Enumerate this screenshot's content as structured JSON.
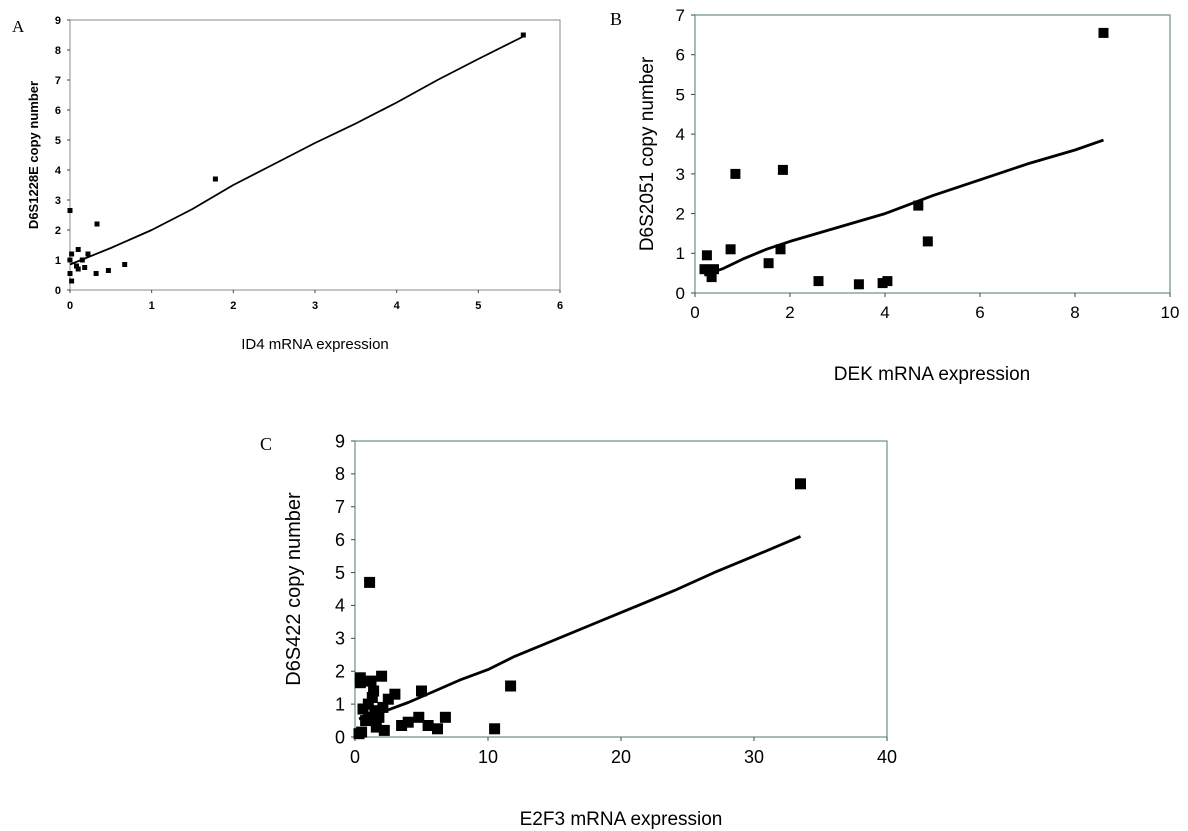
{
  "chart_data": [
    {
      "type": "scatter",
      "panel_letter": "A",
      "title": "",
      "xlabel": "ID4 mRNA expression",
      "ylabel": "D6S1228E copy number",
      "xlim": [
        0,
        6
      ],
      "ylim": [
        0,
        9
      ],
      "xticks": [
        0,
        1,
        2,
        3,
        4,
        5,
        6
      ],
      "yticks": [
        0,
        1,
        2,
        3,
        4,
        5,
        6,
        7,
        8,
        9
      ],
      "grid": false,
      "legend": "none",
      "marker_color": "#000000",
      "line_color": "#000000",
      "points": [
        {
          "x": 0.0,
          "y": 2.65
        },
        {
          "x": 0.02,
          "y": 1.2
        },
        {
          "x": 0.0,
          "y": 1.0
        },
        {
          "x": 0.0,
          "y": 0.55
        },
        {
          "x": 0.02,
          "y": 0.3
        },
        {
          "x": 0.08,
          "y": 0.8
        },
        {
          "x": 0.1,
          "y": 0.7
        },
        {
          "x": 0.1,
          "y": 1.35
        },
        {
          "x": 0.15,
          "y": 1.0
        },
        {
          "x": 0.18,
          "y": 0.75
        },
        {
          "x": 0.22,
          "y": 1.2
        },
        {
          "x": 0.32,
          "y": 0.55
        },
        {
          "x": 0.33,
          "y": 2.2
        },
        {
          "x": 0.47,
          "y": 0.65
        },
        {
          "x": 0.67,
          "y": 0.85
        },
        {
          "x": 1.78,
          "y": 3.7
        },
        {
          "x": 5.55,
          "y": 8.5
        }
      ],
      "trendline": [
        {
          "x": 0.0,
          "y": 0.85
        },
        {
          "x": 0.5,
          "y": 1.4
        },
        {
          "x": 1.0,
          "y": 2.0
        },
        {
          "x": 1.5,
          "y": 2.7
        },
        {
          "x": 2.0,
          "y": 3.5
        },
        {
          "x": 2.5,
          "y": 4.2
        },
        {
          "x": 3.0,
          "y": 4.9
        },
        {
          "x": 3.5,
          "y": 5.55
        },
        {
          "x": 4.0,
          "y": 6.25
        },
        {
          "x": 4.5,
          "y": 7.0
        },
        {
          "x": 5.0,
          "y": 7.7
        },
        {
          "x": 5.55,
          "y": 8.45
        }
      ]
    },
    {
      "type": "scatter",
      "panel_letter": "B",
      "title": "",
      "xlabel": "DEK mRNA expression",
      "ylabel": "D6S2051 copy number",
      "xlim": [
        0,
        10
      ],
      "ylim": [
        0,
        7
      ],
      "xticks": [
        0,
        2,
        4,
        6,
        8,
        10
      ],
      "yticks": [
        0,
        1,
        2,
        3,
        4,
        5,
        6,
        7
      ],
      "grid": false,
      "legend": "none",
      "marker_color": "#000000",
      "line_color": "#000000",
      "points": [
        {
          "x": 0.2,
          "y": 0.6
        },
        {
          "x": 0.25,
          "y": 0.95
        },
        {
          "x": 0.3,
          "y": 0.55
        },
        {
          "x": 0.35,
          "y": 0.4
        },
        {
          "x": 0.4,
          "y": 0.6
        },
        {
          "x": 0.75,
          "y": 1.1
        },
        {
          "x": 0.85,
          "y": 3.0
        },
        {
          "x": 1.55,
          "y": 0.75
        },
        {
          "x": 1.8,
          "y": 1.1
        },
        {
          "x": 1.85,
          "y": 3.1
        },
        {
          "x": 2.6,
          "y": 0.3
        },
        {
          "x": 3.45,
          "y": 0.22
        },
        {
          "x": 3.95,
          "y": 0.25
        },
        {
          "x": 4.05,
          "y": 0.3
        },
        {
          "x": 4.7,
          "y": 2.2
        },
        {
          "x": 4.9,
          "y": 1.3
        },
        {
          "x": 8.6,
          "y": 6.55
        }
      ],
      "trendline": [
        {
          "x": 0.2,
          "y": 0.45
        },
        {
          "x": 0.6,
          "y": 0.62
        },
        {
          "x": 1.0,
          "y": 0.85
        },
        {
          "x": 1.5,
          "y": 1.1
        },
        {
          "x": 2.0,
          "y": 1.3
        },
        {
          "x": 3.0,
          "y": 1.65
        },
        {
          "x": 4.0,
          "y": 2.0
        },
        {
          "x": 5.0,
          "y": 2.45
        },
        {
          "x": 6.0,
          "y": 2.85
        },
        {
          "x": 7.0,
          "y": 3.25
        },
        {
          "x": 8.0,
          "y": 3.6
        },
        {
          "x": 8.6,
          "y": 3.85
        }
      ]
    },
    {
      "type": "scatter",
      "panel_letter": "C",
      "title": "",
      "xlabel": "E2F3 mRNA expression",
      "ylabel": "D6S422 copy number",
      "xlim": [
        0,
        40
      ],
      "ylim": [
        0,
        9
      ],
      "xticks": [
        0,
        10,
        20,
        30,
        40
      ],
      "yticks": [
        0,
        1,
        2,
        3,
        4,
        5,
        6,
        7,
        8,
        9
      ],
      "grid": false,
      "legend": "none",
      "marker_color": "#000000",
      "line_color": "#000000",
      "points": [
        {
          "x": 0.3,
          "y": 0.1
        },
        {
          "x": 0.5,
          "y": 0.15
        },
        {
          "x": 0.4,
          "y": 1.8
        },
        {
          "x": 0.4,
          "y": 1.65
        },
        {
          "x": 0.6,
          "y": 0.85
        },
        {
          "x": 0.8,
          "y": 0.5
        },
        {
          "x": 1.0,
          "y": 0.6
        },
        {
          "x": 1.0,
          "y": 1.0
        },
        {
          "x": 1.1,
          "y": 4.7
        },
        {
          "x": 1.2,
          "y": 1.7
        },
        {
          "x": 1.3,
          "y": 1.2
        },
        {
          "x": 1.4,
          "y": 1.4
        },
        {
          "x": 1.5,
          "y": 0.8
        },
        {
          "x": 1.6,
          "y": 0.3
        },
        {
          "x": 1.8,
          "y": 0.6
        },
        {
          "x": 2.0,
          "y": 1.85
        },
        {
          "x": 2.1,
          "y": 0.9
        },
        {
          "x": 2.2,
          "y": 0.2
        },
        {
          "x": 2.5,
          "y": 1.15
        },
        {
          "x": 3.0,
          "y": 1.3
        },
        {
          "x": 3.5,
          "y": 0.35
        },
        {
          "x": 4.0,
          "y": 0.45
        },
        {
          "x": 4.8,
          "y": 0.6
        },
        {
          "x": 5.0,
          "y": 1.4
        },
        {
          "x": 5.5,
          "y": 0.35
        },
        {
          "x": 6.2,
          "y": 0.25
        },
        {
          "x": 6.8,
          "y": 0.6
        },
        {
          "x": 10.5,
          "y": 0.25
        },
        {
          "x": 11.7,
          "y": 1.55
        },
        {
          "x": 33.5,
          "y": 7.7
        }
      ],
      "trendline": [
        {
          "x": 0.3,
          "y": 0.55
        },
        {
          "x": 2.0,
          "y": 0.75
        },
        {
          "x": 4.0,
          "y": 1.05
        },
        {
          "x": 6.0,
          "y": 1.4
        },
        {
          "x": 8.0,
          "y": 1.75
        },
        {
          "x": 10.0,
          "y": 2.05
        },
        {
          "x": 12.0,
          "y": 2.45
        },
        {
          "x": 15.0,
          "y": 2.95
        },
        {
          "x": 18.0,
          "y": 3.45
        },
        {
          "x": 21.0,
          "y": 3.95
        },
        {
          "x": 24.0,
          "y": 4.45
        },
        {
          "x": 27.0,
          "y": 5.0
        },
        {
          "x": 30.0,
          "y": 5.5
        },
        {
          "x": 33.5,
          "y": 6.1
        }
      ]
    }
  ]
}
